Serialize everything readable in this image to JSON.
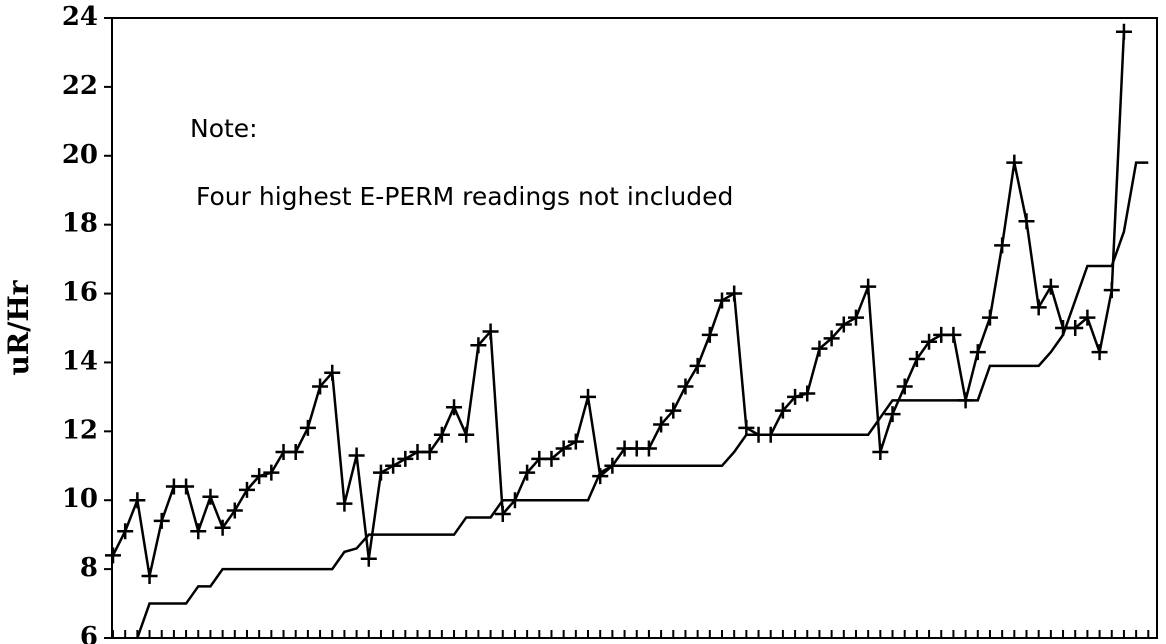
{
  "chart_data": {
    "type": "line",
    "annotations": [
      "Note:",
      "Four highest E-PERM readings not included"
    ],
    "ylabel": "uR/Hr",
    "categories": [
      null,
      null,
      null,
      null,
      null,
      null,
      null,
      null,
      null,
      null,
      null,
      null,
      null,
      null,
      null,
      null,
      null,
      null,
      null,
      null,
      null,
      null,
      null,
      null,
      null,
      null,
      null,
      null,
      null,
      null,
      null,
      null,
      null,
      null,
      null,
      null,
      null,
      null,
      null,
      null,
      null,
      null,
      null,
      null,
      null,
      null,
      null,
      null,
      null,
      null,
      null,
      null,
      null,
      null,
      null,
      null,
      null,
      null,
      null,
      null,
      null,
      null,
      null,
      null,
      null,
      null,
      null,
      null,
      null,
      null,
      null,
      null,
      null,
      null,
      null,
      null,
      null,
      null,
      null,
      null,
      null,
      null,
      null,
      null,
      null,
      null
    ],
    "series": [
      {
        "color": "#000000",
        "marker": "+",
        "values": [
          8.4,
          9.1,
          10.0,
          7.8,
          9.4,
          10.4,
          10.4,
          9.1,
          10.1,
          9.2,
          9.7,
          10.3,
          10.7,
          10.8,
          11.4,
          11.4,
          12.1,
          13.3,
          13.7,
          9.9,
          11.3,
          8.3,
          10.8,
          11.0,
          11.2,
          11.4,
          11.4,
          11.9,
          12.7,
          11.9,
          14.5,
          14.9,
          9.6,
          10.0,
          10.8,
          11.2,
          11.2,
          11.5,
          11.7,
          13.0,
          10.7,
          11.0,
          11.5,
          11.5,
          11.5,
          12.2,
          12.6,
          13.3,
          13.9,
          14.8,
          15.8,
          16.0,
          12.1,
          11.9,
          11.9,
          12.6,
          13.0,
          13.1,
          14.4,
          14.7,
          15.1,
          15.3,
          16.2,
          11.4,
          12.5,
          13.3,
          14.1,
          14.6,
          14.8,
          14.8,
          12.9,
          14.3,
          15.3,
          17.4,
          19.8,
          18.1,
          15.6,
          16.2,
          15.0,
          15.0,
          15.3,
          14.3,
          16.1,
          23.6,
          null,
          null
        ]
      },
      {
        "color": "#000000",
        "values": [
          null,
          null,
          6.0,
          7.0,
          7.0,
          7.0,
          7.0,
          7.5,
          7.5,
          8.0,
          8.0,
          8.0,
          8.0,
          8.0,
          8.0,
          8.0,
          8.0,
          8.0,
          8.0,
          8.5,
          8.6,
          9.0,
          9.0,
          9.0,
          9.0,
          9.0,
          9.0,
          9.0,
          9.0,
          9.5,
          9.5,
          9.5,
          10.0,
          10.0,
          10.0,
          10.0,
          10.0,
          10.0,
          10.0,
          10.0,
          10.8,
          11.0,
          11.0,
          11.0,
          11.0,
          11.0,
          11.0,
          11.0,
          11.0,
          11.0,
          11.0,
          11.4,
          11.9,
          11.9,
          11.9,
          11.9,
          11.9,
          11.9,
          11.9,
          11.9,
          11.9,
          11.9,
          11.9,
          12.4,
          12.9,
          12.9,
          12.9,
          12.9,
          12.9,
          12.9,
          12.9,
          12.9,
          13.9,
          13.9,
          13.9,
          13.9,
          13.9,
          14.3,
          14.8,
          15.8,
          16.8,
          16.8,
          16.8,
          17.8,
          19.8,
          19.8
        ]
      }
    ],
    "ylim": [
      6,
      24
    ],
    "yticks": [
      6,
      8,
      10,
      12,
      14,
      16,
      18,
      20,
      22,
      24
    ],
    "grid": false
  }
}
